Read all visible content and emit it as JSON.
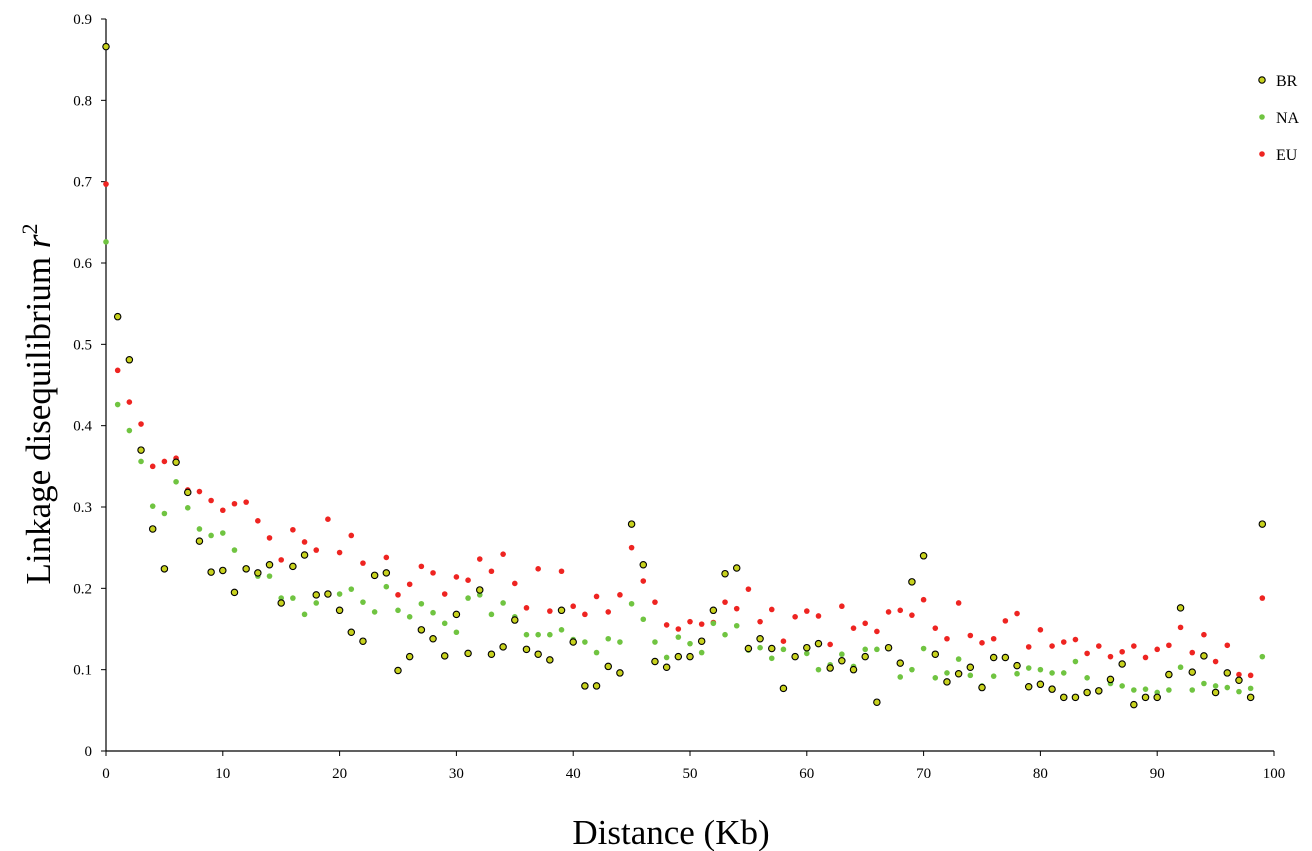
{
  "chart_data": {
    "type": "scatter",
    "title": "",
    "xlabel": "Distance (Kb)",
    "ylabel_main": "Linkage disequilibrium ",
    "ylabel_symbol": "r",
    "ylabel_sup": "2",
    "xlim": [
      0,
      100
    ],
    "ylim": [
      0,
      0.9
    ],
    "x_ticks": [
      0,
      10,
      20,
      30,
      40,
      50,
      60,
      70,
      80,
      90,
      100
    ],
    "y_ticks": [
      0,
      0.1,
      0.2,
      0.3,
      0.4,
      0.5,
      0.6,
      0.7,
      0.8,
      0.9
    ],
    "x_tick_labels": [
      "0",
      "10",
      "20",
      "30",
      "40",
      "50",
      "60",
      "70",
      "80",
      "90",
      "100"
    ],
    "y_tick_labels": [
      "0",
      "0.1",
      "0.2",
      "0.3",
      "0.4",
      "0.5",
      "0.6",
      "0.7",
      "0.8",
      "0.9"
    ],
    "grid": false,
    "legend_position": "top-right",
    "x": [
      0,
      1,
      2,
      3,
      4,
      5,
      6,
      7,
      8,
      9,
      10,
      11,
      12,
      13,
      14,
      15,
      16,
      17,
      18,
      19,
      20,
      21,
      22,
      23,
      24,
      25,
      26,
      27,
      28,
      29,
      30,
      31,
      32,
      33,
      34,
      35,
      36,
      37,
      38,
      39,
      40,
      41,
      42,
      43,
      44,
      45,
      46,
      47,
      48,
      49,
      50,
      51,
      52,
      53,
      54,
      55,
      56,
      57,
      58,
      59,
      60,
      61,
      62,
      63,
      64,
      65,
      66,
      67,
      68,
      69,
      70,
      71,
      72,
      73,
      74,
      75,
      76,
      77,
      78,
      79,
      80,
      81,
      82,
      83,
      84,
      85,
      86,
      87,
      88,
      89,
      90,
      91,
      92,
      93,
      94,
      95,
      96,
      97,
      98,
      99
    ],
    "series": [
      {
        "name": "BR",
        "marker": "circle-outlined",
        "color": "#c8d21e",
        "edge_color": "#000000",
        "values": [
          0.866,
          0.534,
          0.481,
          0.37,
          0.273,
          0.224,
          0.355,
          0.318,
          0.258,
          0.22,
          0.222,
          0.195,
          0.224,
          0.219,
          0.229,
          0.182,
          0.227,
          0.241,
          0.192,
          0.193,
          0.173,
          0.146,
          0.135,
          0.216,
          0.219,
          0.099,
          0.116,
          0.149,
          0.138,
          0.117,
          0.168,
          0.12,
          0.198,
          0.119,
          0.128,
          0.161,
          0.125,
          0.119,
          0.112,
          0.173,
          0.134,
          0.08,
          0.08,
          0.104,
          0.096,
          0.279,
          0.229,
          0.11,
          0.103,
          0.116,
          0.116,
          0.135,
          0.173,
          0.218,
          0.225,
          0.126,
          0.138,
          0.126,
          0.077,
          0.116,
          0.127,
          0.132,
          0.102,
          0.111,
          0.1,
          0.116,
          0.06,
          0.127,
          0.108,
          0.208,
          0.24,
          0.119,
          0.085,
          0.095,
          0.103,
          0.078,
          0.115,
          0.115,
          0.105,
          0.079,
          0.082,
          0.076,
          0.066,
          0.066,
          0.072,
          0.074,
          0.088,
          0.107,
          0.057,
          0.066,
          0.066,
          0.094,
          0.176,
          0.097,
          0.117,
          0.072,
          0.096,
          0.087,
          0.066,
          0.279
        ]
      },
      {
        "name": "NA",
        "marker": "dot",
        "color": "#70c441",
        "values": [
          0.626,
          0.426,
          0.394,
          0.356,
          0.301,
          0.292,
          0.331,
          0.299,
          0.273,
          0.265,
          0.268,
          0.247,
          0.225,
          0.215,
          0.215,
          0.188,
          0.188,
          0.168,
          0.182,
          0.193,
          0.193,
          0.199,
          0.183,
          0.171,
          0.202,
          0.173,
          0.165,
          0.181,
          0.17,
          0.157,
          0.146,
          0.188,
          0.192,
          0.168,
          0.182,
          0.165,
          0.143,
          0.143,
          0.143,
          0.149,
          0.137,
          0.134,
          0.121,
          0.138,
          0.134,
          0.181,
          0.162,
          0.134,
          0.115,
          0.14,
          0.132,
          0.121,
          0.157,
          0.143,
          0.154,
          0.124,
          0.127,
          0.114,
          0.125,
          0.117,
          0.12,
          0.1,
          0.106,
          0.119,
          0.104,
          0.125,
          0.125,
          0.127,
          0.091,
          0.1,
          0.126,
          0.09,
          0.096,
          0.113,
          0.093,
          0.08,
          0.092,
          0.116,
          0.095,
          0.102,
          0.1,
          0.096,
          0.096,
          0.11,
          0.09,
          0.075,
          0.083,
          0.08,
          0.075,
          0.076,
          0.072,
          0.075,
          0.103,
          0.075,
          0.083,
          0.08,
          0.078,
          0.073,
          0.077,
          0.116
        ]
      },
      {
        "name": "EU",
        "marker": "dot",
        "color": "#ee2421",
        "values": [
          0.697,
          0.468,
          0.429,
          0.402,
          0.35,
          0.356,
          0.36,
          0.321,
          0.319,
          0.308,
          0.296,
          0.304,
          0.306,
          0.283,
          0.262,
          0.235,
          0.272,
          0.257,
          0.247,
          0.285,
          0.244,
          0.265,
          0.231,
          0.215,
          0.238,
          0.192,
          0.205,
          0.227,
          0.219,
          0.193,
          0.214,
          0.21,
          0.236,
          0.221,
          0.242,
          0.206,
          0.176,
          0.224,
          0.172,
          0.221,
          0.178,
          0.168,
          0.19,
          0.171,
          0.192,
          0.25,
          0.209,
          0.183,
          0.155,
          0.15,
          0.159,
          0.156,
          0.158,
          0.183,
          0.175,
          0.199,
          0.159,
          0.174,
          0.135,
          0.165,
          0.172,
          0.166,
          0.131,
          0.178,
          0.151,
          0.157,
          0.147,
          0.171,
          0.173,
          0.167,
          0.186,
          0.151,
          0.138,
          0.182,
          0.142,
          0.133,
          0.138,
          0.16,
          0.169,
          0.128,
          0.149,
          0.129,
          0.134,
          0.137,
          0.12,
          0.129,
          0.116,
          0.122,
          0.129,
          0.115,
          0.125,
          0.13,
          0.152,
          0.121,
          0.143,
          0.11,
          0.13,
          0.094,
          0.093,
          0.188
        ]
      }
    ]
  }
}
